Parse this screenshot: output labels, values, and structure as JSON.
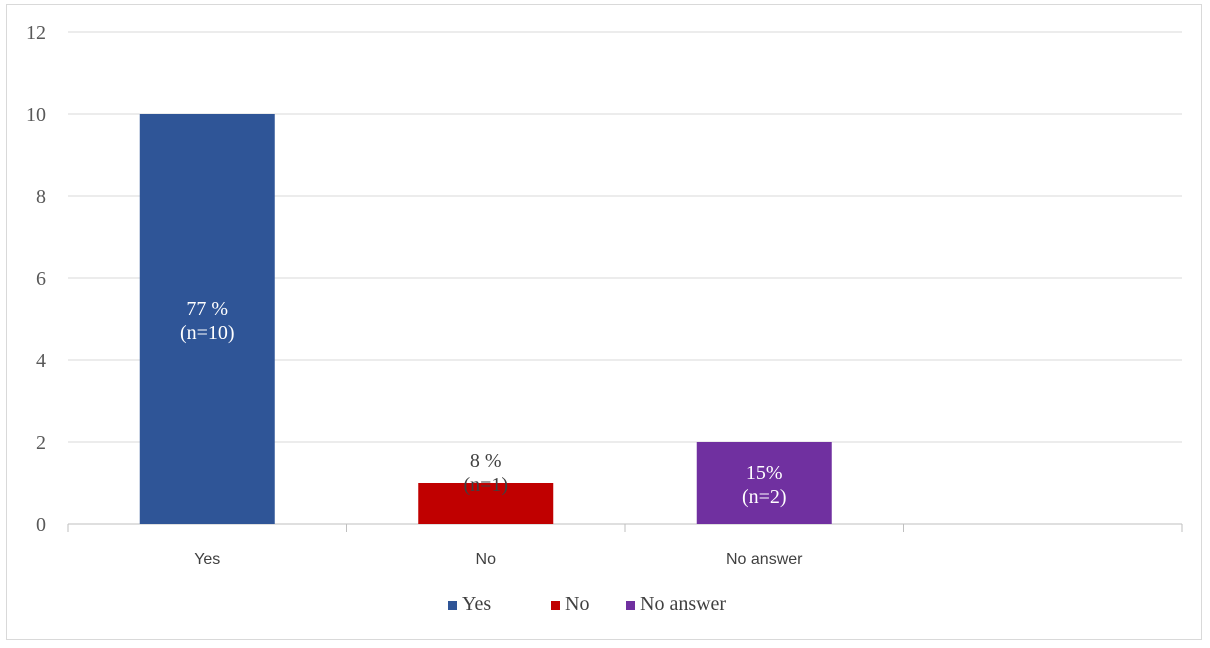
{
  "chart_data": {
    "type": "bar",
    "title": "",
    "xlabel": "",
    "ylabel": "",
    "categories": [
      "Yes",
      "No",
      "No answer",
      ""
    ],
    "values": [
      10,
      1,
      2,
      null
    ],
    "ylim": [
      0,
      12
    ],
    "yticks": [
      0,
      2,
      4,
      6,
      8,
      10,
      12
    ],
    "colors": [
      "#2f5597",
      "#c00000",
      "#7030a0"
    ],
    "data_labels": [
      [
        "77 %",
        "(n=10)"
      ],
      [
        "8 %",
        "(n=1)"
      ],
      [
        "15%",
        "(n=2)"
      ]
    ],
    "data_label_colors": [
      "#ffffff",
      "#404040",
      "#ffffff"
    ],
    "legend": {
      "position": "bottom",
      "entries": [
        {
          "label": "Yes",
          "color": "#2f5597"
        },
        {
          "label": "No",
          "color": "#c00000"
        },
        {
          "label": "No answer",
          "color": "#7030a0"
        }
      ]
    },
    "grid": true
  }
}
